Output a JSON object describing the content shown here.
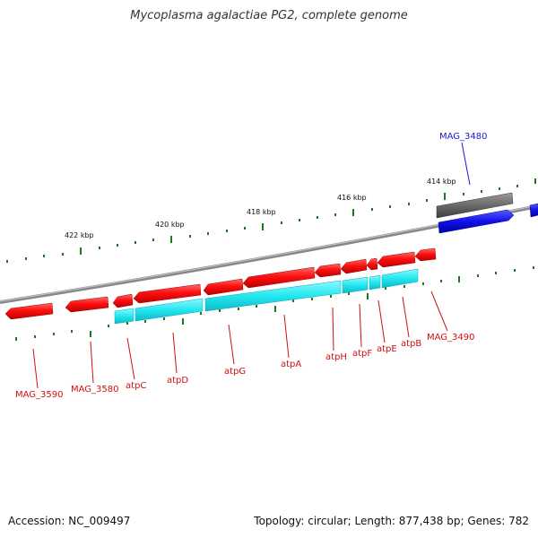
{
  "title": "Mycoplasma agalactiae PG2, complete genome",
  "footer": {
    "accession": "Accession: NC_009497",
    "topology": "Topology: circular; Length: 877,438 bp; Genes: 782"
  },
  "ruler": {
    "labels": [
      "422 kbp",
      "420 kbp",
      "418 kbp",
      "416 kbp",
      "414 kbp"
    ]
  },
  "gene_labels": {
    "forward": [
      "MAG_3480"
    ],
    "reverse": [
      "MAG_3590",
      "MAG_3580",
      "atpC",
      "atpD",
      "atpG",
      "atpA",
      "atpH",
      "atpF",
      "atpE",
      "atpB",
      "MAG_3490"
    ]
  },
  "colors": {
    "forward_gene": "#1010e8",
    "reverse_gene": "#ff1010",
    "cds_band": "#22e8f0",
    "backbone": "#888888",
    "ticks": "#1a7a1a",
    "forward_label": "#1a1ad0",
    "reverse_label": "#d01010"
  }
}
